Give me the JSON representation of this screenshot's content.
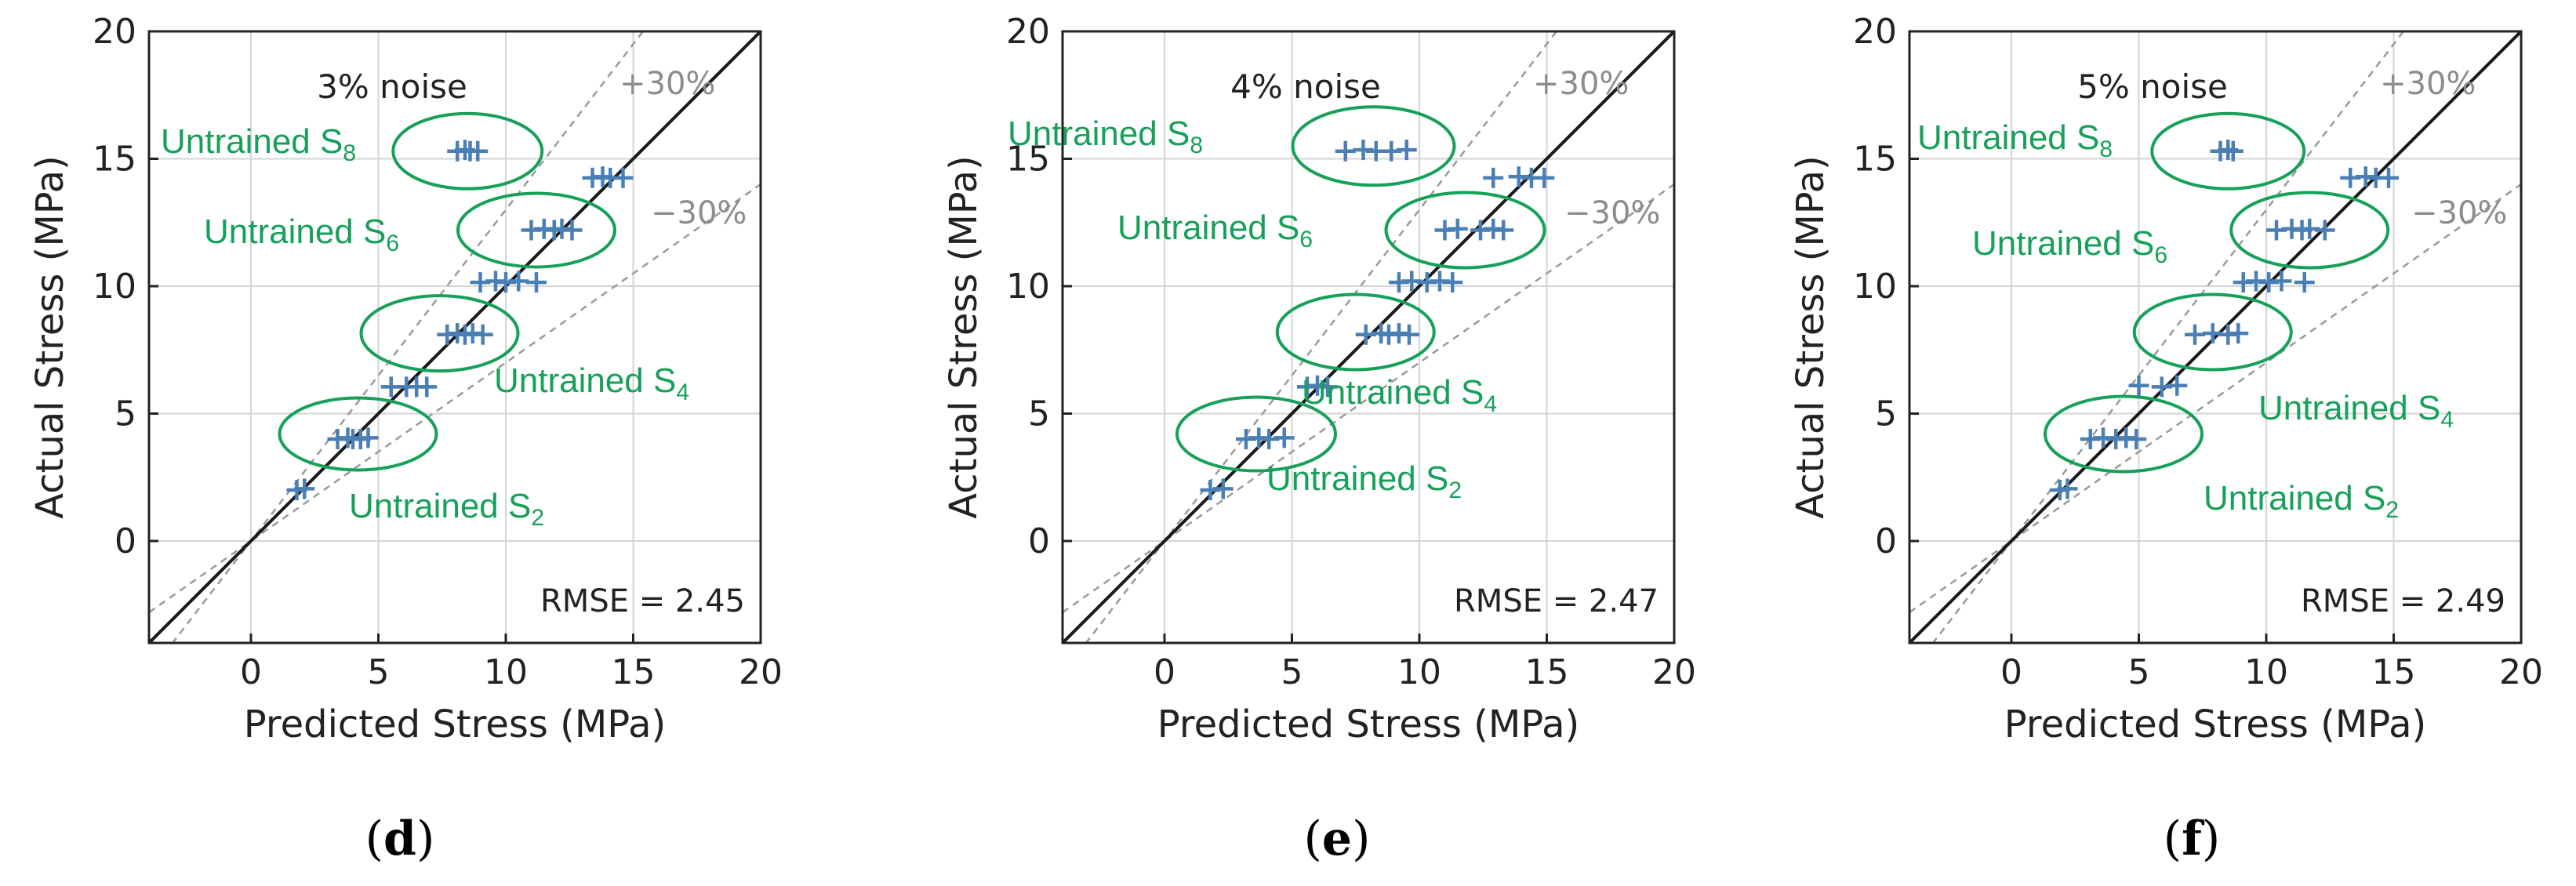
{
  "colors": {
    "marker": "#4a7fb5",
    "ellipse": "#17a05a",
    "annotation": "#17a05a",
    "grid": "#d4d4d4",
    "identity_line": "#1a1a1a",
    "band_line": "#9a9a9a",
    "band_text": "#8c8c8c",
    "frame": "#222222"
  },
  "chart_data": [
    {
      "type": "scatter",
      "panel_open": "(",
      "panel_letter": "d",
      "panel_close": ")",
      "title": "3% noise",
      "xlabel": "Predicted Stress (MPa)",
      "ylabel": "Actual Stress (MPa)",
      "xlim": [
        -4,
        20
      ],
      "ylim": [
        -4,
        20
      ],
      "xticks": [
        "0",
        "5",
        "10",
        "15",
        "20"
      ],
      "yticks": [
        "0",
        "5",
        "10",
        "15",
        "20"
      ],
      "grid": true,
      "identity_line": true,
      "bands": [
        {
          "label": "+30%",
          "slope": 1.3
        },
        {
          "label": "−30%",
          "slope": 0.7
        }
      ],
      "rmse_label": "RMSE = 2.45",
      "series": [
        {
          "name": "predictions",
          "marker": "+",
          "points": [
            [
              1.8,
              2.0
            ],
            [
              2.1,
              2.05
            ],
            [
              3.4,
              4.0
            ],
            [
              3.8,
              4.05
            ],
            [
              4.0,
              4.0
            ],
            [
              4.3,
              4.0
            ],
            [
              4.6,
              4.05
            ],
            [
              5.5,
              6.05
            ],
            [
              6.1,
              6.05
            ],
            [
              6.5,
              6.05
            ],
            [
              6.9,
              6.05
            ],
            [
              7.7,
              8.1
            ],
            [
              8.1,
              8.15
            ],
            [
              8.4,
              8.1
            ],
            [
              8.7,
              8.15
            ],
            [
              9.1,
              8.1
            ],
            [
              9.0,
              10.15
            ],
            [
              9.6,
              10.2
            ],
            [
              10.0,
              10.15
            ],
            [
              10.5,
              10.2
            ],
            [
              11.2,
              10.15
            ],
            [
              11.0,
              12.2
            ],
            [
              11.5,
              12.25
            ],
            [
              11.9,
              12.2
            ],
            [
              12.2,
              12.25
            ],
            [
              12.6,
              12.2
            ],
            [
              13.4,
              14.25
            ],
            [
              13.8,
              14.3
            ],
            [
              14.1,
              14.25
            ],
            [
              14.6,
              14.25
            ],
            [
              8.1,
              15.3
            ],
            [
              8.4,
              15.35
            ],
            [
              8.6,
              15.3
            ],
            [
              8.9,
              15.3
            ]
          ]
        }
      ],
      "annotations": [
        {
          "name": "S8",
          "text": "Untrained S",
          "sub": "8",
          "ellipse": [
            8.5,
            15.3
          ]
        },
        {
          "name": "S6",
          "text": "Untrained S",
          "sub": "6",
          "ellipse": [
            11.2,
            12.2
          ]
        },
        {
          "name": "S4",
          "text": "Untrained S",
          "sub": "4",
          "ellipse": [
            7.4,
            8.15
          ]
        },
        {
          "name": "S2",
          "text": "Untrained S",
          "sub": "2",
          "ellipse": [
            4.2,
            4.2
          ]
        }
      ]
    },
    {
      "type": "scatter",
      "panel_open": "(",
      "panel_letter": "e",
      "panel_close": ")",
      "title": "4% noise",
      "xlabel": "Predicted Stress (MPa)",
      "ylabel": "Actual Stress (MPa)",
      "xlim": [
        -4,
        20
      ],
      "ylim": [
        -4,
        20
      ],
      "xticks": [
        "0",
        "5",
        "10",
        "15",
        "20"
      ],
      "yticks": [
        "0",
        "5",
        "10",
        "15",
        "20"
      ],
      "grid": true,
      "identity_line": true,
      "bands": [
        {
          "label": "+30%",
          "slope": 1.3
        },
        {
          "label": "−30%",
          "slope": 0.7
        }
      ],
      "rmse_label": "RMSE = 2.47",
      "series": [
        {
          "name": "predictions",
          "marker": "+",
          "points": [
            [
              1.8,
              2.0
            ],
            [
              2.3,
              2.05
            ],
            [
              3.2,
              4.0
            ],
            [
              3.7,
              4.05
            ],
            [
              4.1,
              4.0
            ],
            [
              4.7,
              4.05
            ],
            [
              5.6,
              6.05
            ],
            [
              6.0,
              6.1
            ],
            [
              6.4,
              6.05
            ],
            [
              7.9,
              8.1
            ],
            [
              8.5,
              8.15
            ],
            [
              8.8,
              8.1
            ],
            [
              9.2,
              8.15
            ],
            [
              9.6,
              8.1
            ],
            [
              9.2,
              10.15
            ],
            [
              9.7,
              10.2
            ],
            [
              10.3,
              10.15
            ],
            [
              10.8,
              10.2
            ],
            [
              11.3,
              10.15
            ],
            [
              11.0,
              12.2
            ],
            [
              11.5,
              12.25
            ],
            [
              12.4,
              12.2
            ],
            [
              12.9,
              12.25
            ],
            [
              13.3,
              12.2
            ],
            [
              12.9,
              14.25
            ],
            [
              13.9,
              14.3
            ],
            [
              14.4,
              14.25
            ],
            [
              14.9,
              14.25
            ],
            [
              7.1,
              15.3
            ],
            [
              7.8,
              15.35
            ],
            [
              8.3,
              15.3
            ],
            [
              8.9,
              15.3
            ],
            [
              9.5,
              15.35
            ]
          ]
        }
      ],
      "annotations": [
        {
          "name": "S8",
          "text": "Untrained S",
          "sub": "8",
          "ellipse": [
            8.2,
            15.5
          ]
        },
        {
          "name": "S6",
          "text": "Untrained S",
          "sub": "6",
          "ellipse": [
            11.8,
            12.2
          ]
        },
        {
          "name": "S4",
          "text": "Untrained S",
          "sub": "4",
          "ellipse": [
            7.5,
            8.2
          ]
        },
        {
          "name": "S2",
          "text": "Untrained S",
          "sub": "2",
          "ellipse": [
            3.6,
            4.2
          ]
        }
      ]
    },
    {
      "type": "scatter",
      "panel_open": "(",
      "panel_letter": "f",
      "panel_close": ")",
      "title": "5% noise",
      "xlabel": "Predicted Stress (MPa)",
      "ylabel": "Actual Stress (MPa)",
      "xlim": [
        -4,
        20
      ],
      "ylim": [
        -4,
        20
      ],
      "xticks": [
        "0",
        "5",
        "10",
        "15",
        "20"
      ],
      "yticks": [
        "0",
        "5",
        "10",
        "15",
        "20"
      ],
      "grid": true,
      "identity_line": true,
      "bands": [
        {
          "label": "+30%",
          "slope": 1.3
        },
        {
          "label": "−30%",
          "slope": 0.7
        }
      ],
      "rmse_label": "RMSE = 2.49",
      "series": [
        {
          "name": "predictions",
          "marker": "+",
          "points": [
            [
              1.9,
              2.0
            ],
            [
              2.2,
              2.05
            ],
            [
              3.1,
              4.0
            ],
            [
              3.6,
              4.05
            ],
            [
              4.1,
              4.0
            ],
            [
              4.5,
              4.05
            ],
            [
              4.9,
              4.0
            ],
            [
              5.0,
              6.1
            ],
            [
              5.9,
              6.05
            ],
            [
              6.5,
              6.1
            ],
            [
              7.2,
              8.1
            ],
            [
              7.9,
              8.15
            ],
            [
              8.5,
              8.1
            ],
            [
              8.9,
              8.15
            ],
            [
              9.1,
              10.15
            ],
            [
              9.6,
              10.2
            ],
            [
              10.1,
              10.15
            ],
            [
              10.6,
              10.2
            ],
            [
              11.5,
              10.15
            ],
            [
              10.4,
              12.2
            ],
            [
              11.0,
              12.25
            ],
            [
              11.4,
              12.2
            ],
            [
              11.7,
              12.25
            ],
            [
              12.3,
              12.2
            ],
            [
              13.3,
              14.25
            ],
            [
              13.9,
              14.3
            ],
            [
              14.3,
              14.25
            ],
            [
              14.8,
              14.25
            ],
            [
              8.2,
              15.3
            ],
            [
              8.5,
              15.35
            ],
            [
              8.7,
              15.3
            ]
          ]
        }
      ],
      "annotations": [
        {
          "name": "S8",
          "text": "Untrained S",
          "sub": "8",
          "ellipse": [
            8.5,
            15.3
          ]
        },
        {
          "name": "S6",
          "text": "Untrained S",
          "sub": "6",
          "ellipse": [
            11.7,
            12.2
          ]
        },
        {
          "name": "S4",
          "text": "Untrained S",
          "sub": "4",
          "ellipse": [
            7.9,
            8.2
          ]
        },
        {
          "name": "S2",
          "text": "Untrained S",
          "sub": "2",
          "ellipse": [
            4.4,
            4.2
          ]
        }
      ]
    }
  ]
}
